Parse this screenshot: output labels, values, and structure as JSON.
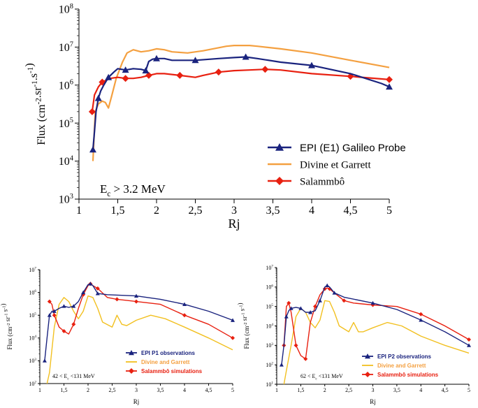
{
  "chart_data": [
    {
      "type": "line",
      "ylabel": "Flux (cm-2.sr-1.s-1)",
      "xlabel": "Rj",
      "xlim": [
        1,
        5
      ],
      "ylim_log10": [
        3,
        8
      ],
      "y_scale": "log",
      "x_ticks": [
        "1",
        "1,5",
        "2",
        "2,5",
        "3",
        "3,5",
        "4",
        "4,5",
        "5"
      ],
      "y_ticks": [
        "10^3",
        "10^4",
        "10^5",
        "10^6",
        "10^7",
        "10^8"
      ],
      "annotation": "Ec > 3.2 MeV",
      "legend_position": "bottom-right",
      "grid": false,
      "series": [
        {
          "name": "EPI (E1)  Galileo Probe",
          "color": "#1a237e",
          "marker": "triangle",
          "x": [
            1.18,
            1.2,
            1.22,
            1.25,
            1.28,
            1.32,
            1.38,
            1.45,
            1.5,
            1.6,
            1.7,
            1.8,
            1.86,
            1.9,
            1.95,
            2.0,
            2.1,
            2.2,
            2.5,
            2.8,
            3.0,
            3.15,
            3.3,
            3.6,
            4.0,
            4.5,
            4.9,
            5.0
          ],
          "y": [
            20000,
            60000,
            200000,
            450000,
            700000,
            1000000,
            1600000,
            2200000,
            2700000,
            2500000,
            2700000,
            2600000,
            2400000,
            4200000,
            4800000,
            5000000,
            5000000,
            4500000,
            4500000,
            5000000,
            5300000,
            5500000,
            5000000,
            4000000,
            3300000,
            2000000,
            1100000,
            900000
          ]
        },
        {
          "name": "Divine et Garrett",
          "color": "#f4a040",
          "marker": "none",
          "x": [
            1.18,
            1.21,
            1.25,
            1.3,
            1.34,
            1.38,
            1.42,
            1.48,
            1.56,
            1.62,
            1.7,
            1.8,
            1.9,
            2.0,
            2.1,
            2.2,
            2.4,
            2.6,
            2.9,
            3.0,
            3.2,
            3.3,
            3.6,
            4.0,
            4.5,
            5.0
          ],
          "y": [
            10000,
            200000,
            320000,
            380000,
            350000,
            250000,
            500000,
            1500000,
            4000000,
            7000000,
            8500000,
            7500000,
            8000000,
            9000000,
            8500000,
            7500000,
            7000000,
            8000000,
            10500000,
            11000000,
            11000000,
            10500000,
            9000000,
            7000000,
            4500000,
            2900000
          ]
        },
        {
          "name": "Salammbô",
          "color": "#e82010",
          "marker": "diamond",
          "x": [
            1.17,
            1.2,
            1.25,
            1.3,
            1.4,
            1.5,
            1.6,
            1.7,
            1.8,
            1.9,
            2.0,
            2.1,
            2.3,
            2.5,
            2.6,
            2.8,
            3.0,
            3.2,
            3.4,
            3.6,
            4.0,
            4.5,
            5.0
          ],
          "y": [
            200000,
            550000,
            900000,
            1200000,
            1500000,
            1600000,
            1500000,
            1500000,
            1600000,
            1800000,
            2000000,
            2000000,
            1800000,
            1600000,
            1800000,
            2200000,
            2400000,
            2500000,
            2600000,
            2500000,
            2000000,
            1700000,
            1400000
          ]
        }
      ]
    },
    {
      "type": "line",
      "ylabel": "Flux (cm-2 sr-1 s-1)",
      "xlabel": "Rj",
      "xlim": [
        1,
        5
      ],
      "ylim_log10": [
        2,
        7
      ],
      "y_scale": "log",
      "x_ticks": [
        "1",
        "1,5",
        "2",
        "2,5",
        "3",
        "3,5",
        "4",
        "4,5",
        "5"
      ],
      "y_ticks": [
        "10^2",
        "10^3",
        "10^4",
        "10^5",
        "10^6",
        "10^7"
      ],
      "annotation": "42 < Ec <131 MeV",
      "legend_position": "bottom-right",
      "grid": false,
      "series": [
        {
          "name": "EPI P1 observations",
          "color": "#1a237e",
          "marker": "triangle",
          "x": [
            1.1,
            1.15,
            1.2,
            1.25,
            1.3,
            1.4,
            1.5,
            1.6,
            1.7,
            1.8,
            1.9,
            2.0,
            2.05,
            2.1,
            2.2,
            2.4,
            3.0,
            3.5,
            4.0,
            4.5,
            5.0
          ],
          "y": [
            1000,
            10000,
            100000,
            150000,
            150000,
            200000,
            250000,
            220000,
            250000,
            400000,
            1000000,
            2200000,
            2400000,
            2000000,
            900000,
            800000,
            700000,
            500000,
            300000,
            150000,
            60000
          ]
        },
        {
          "name": "Divine and Garrett",
          "color": "#f2c020",
          "marker": "none",
          "x": [
            1.15,
            1.2,
            1.3,
            1.4,
            1.5,
            1.6,
            1.7,
            1.8,
            1.9,
            2.0,
            2.1,
            2.2,
            2.3,
            2.5,
            2.6,
            2.7,
            2.8,
            3.0,
            3.3,
            3.6,
            4.0,
            4.5,
            5.0
          ],
          "y": [
            100,
            300,
            30000,
            300000,
            600000,
            400000,
            150000,
            70000,
            150000,
            700000,
            600000,
            200000,
            50000,
            30000,
            100000,
            40000,
            35000,
            60000,
            100000,
            70000,
            30000,
            10000,
            3000
          ]
        },
        {
          "name": "Salammbô simulations",
          "color": "#e82010",
          "marker": "diamond",
          "x": [
            1.2,
            1.25,
            1.3,
            1.4,
            1.5,
            1.6,
            1.7,
            1.8,
            1.9,
            2.0,
            2.05,
            2.1,
            2.2,
            2.4,
            2.6,
            2.8,
            3.0,
            3.5,
            4.0,
            4.5,
            5.0
          ],
          "y": [
            400000,
            300000,
            100000,
            30000,
            20000,
            15000,
            40000,
            200000,
            800000,
            2000000,
            2400000,
            2000000,
            1500000,
            600000,
            500000,
            450000,
            400000,
            300000,
            100000,
            40000,
            10000
          ]
        }
      ]
    },
    {
      "type": "line",
      "ylabel": "Flux (cm-2 sr-1 s-1)",
      "xlabel": "Rj",
      "xlim": [
        1,
        5
      ],
      "ylim_log10": [
        1,
        7
      ],
      "y_scale": "log",
      "x_ticks": [
        "1",
        "1,5",
        "2",
        "2,5",
        "3",
        "3,5",
        "4",
        "4,5",
        "5"
      ],
      "y_ticks": [
        "10^1",
        "10^2",
        "10^3",
        "10^4",
        "10^5",
        "10^6",
        "10^7"
      ],
      "annotation": "62 < Ec <131 MeV",
      "legend_position": "bottom-right",
      "grid": false,
      "series": [
        {
          "name": "EPI P2 observations",
          "color": "#1a237e",
          "marker": "triangle",
          "x": [
            1.1,
            1.15,
            1.2,
            1.25,
            1.3,
            1.4,
            1.5,
            1.6,
            1.7,
            1.8,
            1.9,
            2.0,
            2.05,
            2.1,
            2.2,
            2.4,
            3.0,
            3.5,
            4.0,
            4.5,
            5.0
          ],
          "y": [
            100,
            1000,
            30000,
            60000,
            80000,
            90000,
            80000,
            50000,
            50000,
            60000,
            200000,
            1000000,
            1200000,
            1000000,
            500000,
            300000,
            150000,
            70000,
            20000,
            5000,
            1000
          ]
        },
        {
          "name": "Divine and Garrett",
          "color": "#f2c020",
          "marker": "none",
          "x": [
            1.15,
            1.2,
            1.3,
            1.4,
            1.5,
            1.6,
            1.7,
            1.8,
            1.9,
            2.0,
            2.1,
            2.2,
            2.3,
            2.5,
            2.6,
            2.7,
            2.8,
            3.0,
            3.3,
            3.6,
            4.0,
            4.5,
            5.0
          ],
          "y": [
            10,
            50,
            1000,
            30000,
            80000,
            50000,
            15000,
            8000,
            20000,
            200000,
            180000,
            50000,
            10000,
            5000,
            15000,
            5000,
            5000,
            8000,
            15000,
            10000,
            3000,
            1000,
            400
          ]
        },
        {
          "name": "Salammbô simulations",
          "color": "#e82010",
          "marker": "diamond",
          "x": [
            1.15,
            1.2,
            1.25,
            1.3,
            1.4,
            1.5,
            1.6,
            1.7,
            1.8,
            1.9,
            2.0,
            2.05,
            2.1,
            2.2,
            2.4,
            2.6,
            3.0,
            3.5,
            4.0,
            4.5,
            5.0
          ],
          "y": [
            1000,
            100000,
            150000,
            50000,
            1000,
            300,
            200,
            15000,
            100000,
            400000,
            800000,
            900000,
            800000,
            500000,
            200000,
            150000,
            120000,
            100000,
            40000,
            10000,
            2000
          ]
        }
      ]
    }
  ]
}
